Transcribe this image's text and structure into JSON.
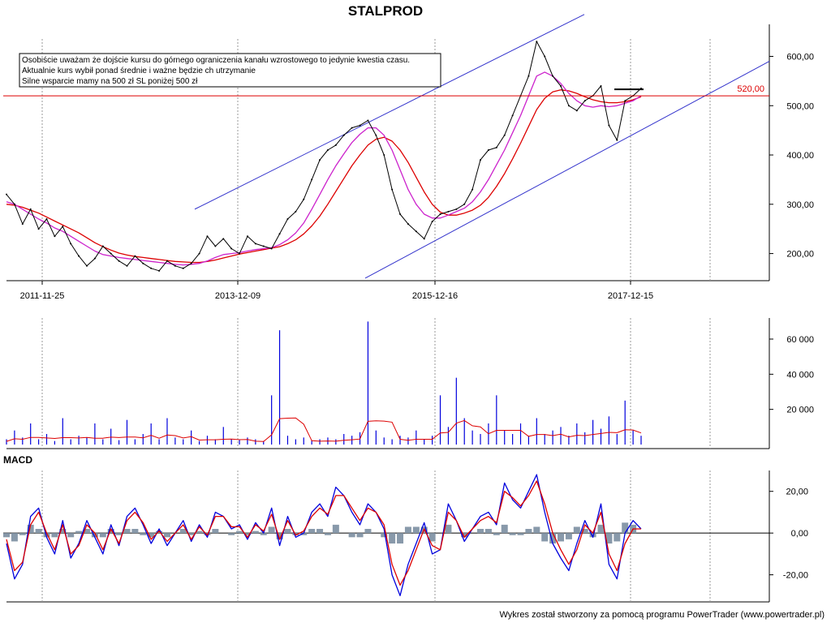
{
  "chart_data": [
    {
      "type": "line",
      "panel": "price",
      "title": "STALPROD",
      "annotation": [
        "Osobiście uważam że dojście kursu do górnego ograniczenia kanału wzrostowego to jedynie kwestia czasu.",
        "Aktualnie kurs wybił ponad średnie i ważne będzie ch utrzymanie",
        "Silne wsparcie mamy na 500 zł SL poniżej 500 zł"
      ],
      "x_tick_labels": [
        "2011-11-25",
        "2013-12-09",
        "2015-12-16",
        "2017-12-15"
      ],
      "y_tick_labels": [
        "200,00",
        "300,00",
        "400,00",
        "500,00",
        "600,00"
      ],
      "y_ticks": [
        200,
        300,
        400,
        500,
        600
      ],
      "ylim": [
        145,
        665
      ],
      "grid": true,
      "level_label": "520,00",
      "level_value": 520,
      "colors": {
        "price": "#000000",
        "ma_short": "#cc22cc",
        "ma_long": "#dd0000",
        "channel": "#3333cc",
        "level": "#dd0000"
      },
      "x": [
        0,
        10,
        20,
        30,
        40,
        50,
        60,
        70,
        80,
        90,
        100,
        110,
        120,
        130,
        140,
        150,
        160,
        170,
        180,
        190,
        200,
        210,
        220,
        230,
        240,
        250,
        260,
        270,
        280,
        290,
        300,
        310,
        320,
        330,
        340,
        350,
        360,
        370,
        380,
        390,
        400,
        410,
        420,
        430,
        440,
        450,
        460,
        470,
        480,
        490,
        500,
        510,
        520,
        530,
        540,
        550,
        560,
        570,
        580,
        590,
        600,
        610,
        620,
        630,
        640,
        650,
        660,
        670,
        680,
        690,
        700,
        710,
        720,
        730,
        740,
        750,
        760,
        770,
        780,
        790
      ],
      "series": [
        {
          "values": [
            320,
            300,
            260,
            290,
            250,
            270,
            235,
            255,
            220,
            195,
            175,
            190,
            215,
            200,
            185,
            175,
            195,
            180,
            170,
            165,
            185,
            175,
            170,
            180,
            200,
            235,
            215,
            230,
            210,
            200,
            235,
            220,
            215,
            210,
            240,
            270,
            285,
            310,
            350,
            390,
            410,
            420,
            440,
            455,
            460,
            470,
            440,
            400,
            330,
            280,
            260,
            245,
            230,
            265,
            280,
            285,
            290,
            300,
            330,
            390,
            410,
            415,
            440,
            480,
            520,
            560,
            630,
            600,
            560,
            540,
            500,
            490,
            510,
            520,
            540,
            460,
            430,
            510,
            520,
            535
          ]
        },
        {
          "values": [
            305,
            300,
            290,
            280,
            270,
            262,
            252,
            245,
            235,
            225,
            215,
            205,
            198,
            195,
            192,
            190,
            188,
            186,
            184,
            182,
            180,
            178,
            177,
            178,
            180,
            185,
            192,
            198,
            200,
            202,
            205,
            208,
            210,
            212,
            218,
            228,
            242,
            262,
            290,
            320,
            350,
            378,
            402,
            425,
            442,
            455,
            455,
            440,
            410,
            370,
            330,
            300,
            280,
            272,
            272,
            278,
            285,
            292,
            305,
            325,
            350,
            380,
            410,
            445,
            480,
            520,
            560,
            568,
            560,
            545,
            525,
            510,
            500,
            497,
            500,
            498,
            500,
            505,
            510,
            520
          ]
        },
        {
          "values": [
            300,
            298,
            294,
            288,
            282,
            274,
            266,
            258,
            250,
            242,
            232,
            222,
            214,
            207,
            201,
            197,
            194,
            192,
            190,
            188,
            186,
            184,
            183,
            182,
            182,
            184,
            187,
            191,
            195,
            199,
            202,
            205,
            208,
            211,
            214,
            220,
            228,
            240,
            256,
            276,
            300,
            326,
            352,
            378,
            400,
            420,
            432,
            436,
            428,
            410,
            385,
            355,
            325,
            300,
            284,
            278,
            278,
            282,
            288,
            298,
            314,
            336,
            362,
            392,
            424,
            458,
            492,
            515,
            528,
            532,
            530,
            525,
            518,
            512,
            508,
            506,
            506,
            508,
            512,
            518
          ]
        }
      ],
      "channel_lines": [
        {
          "x": [
            240,
            720
          ],
          "y": [
            290,
            685
          ]
        },
        {
          "x": [
            450,
            948
          ],
          "y": [
            150,
            590
          ]
        }
      ]
    },
    {
      "type": "bar",
      "panel": "volume",
      "y_tick_labels": [
        "20 000",
        "40 000",
        "60 000"
      ],
      "y_ticks": [
        20000,
        40000,
        60000
      ],
      "ylim": [
        0,
        72000
      ],
      "grid": true,
      "x": [
        0,
        10,
        20,
        30,
        40,
        50,
        60,
        70,
        80,
        90,
        100,
        110,
        120,
        130,
        140,
        150,
        160,
        170,
        180,
        190,
        200,
        210,
        220,
        230,
        240,
        250,
        260,
        270,
        280,
        290,
        300,
        310,
        320,
        330,
        340,
        350,
        360,
        370,
        380,
        390,
        400,
        410,
        420,
        430,
        440,
        450,
        460,
        470,
        480,
        490,
        500,
        510,
        520,
        530,
        540,
        550,
        560,
        570,
        580,
        590,
        600,
        610,
        620,
        630,
        640,
        650,
        660,
        670,
        680,
        690,
        700,
        710,
        720,
        730,
        740,
        750,
        760,
        770,
        780,
        790
      ],
      "values": [
        3000,
        8000,
        4000,
        12000,
        3000,
        6000,
        2000,
        15000,
        3000,
        5000,
        4000,
        12000,
        3000,
        9000,
        2500,
        14000,
        3000,
        6000,
        12000,
        3000,
        15000,
        4000,
        3000,
        8000,
        2000,
        5000,
        3000,
        10000,
        3000,
        2500,
        4000,
        3000,
        2000,
        28000,
        65000,
        5000,
        3000,
        4000,
        2500,
        3000,
        4000,
        3000,
        6000,
        5000,
        7000,
        70000,
        8000,
        4000,
        3000,
        5000,
        4000,
        8000,
        3000,
        5000,
        28000,
        10000,
        38000,
        15000,
        8000,
        6000,
        12000,
        28000,
        8000,
        6000,
        12000,
        5000,
        15000,
        6000,
        8000,
        10000,
        5000,
        12000,
        7000,
        14000,
        9000,
        16000,
        6000,
        25000,
        8000,
        5000
      ],
      "colors": {
        "bars": "#0000dd",
        "average": "#dd0000"
      }
    },
    {
      "type": "area",
      "panel": "macd",
      "title": "MACD",
      "y_tick_labels": [
        "-20,00",
        "0,00",
        "20,00"
      ],
      "y_ticks": [
        -20,
        0,
        20
      ],
      "ylim": [
        -33,
        30
      ],
      "grid": true,
      "x": [
        0,
        10,
        20,
        30,
        40,
        50,
        60,
        70,
        80,
        90,
        100,
        110,
        120,
        130,
        140,
        150,
        160,
        170,
        180,
        190,
        200,
        210,
        220,
        230,
        240,
        250,
        260,
        270,
        280,
        290,
        300,
        310,
        320,
        330,
        340,
        350,
        360,
        370,
        380,
        390,
        400,
        410,
        420,
        430,
        440,
        450,
        460,
        470,
        480,
        490,
        500,
        510,
        520,
        530,
        540,
        550,
        560,
        570,
        580,
        590,
        600,
        610,
        620,
        630,
        640,
        650,
        660,
        670,
        680,
        690,
        700,
        710,
        720,
        730,
        740,
        750,
        760,
        770,
        780,
        790
      ],
      "series": [
        {
          "values": [
            -5,
            -22,
            -15,
            8,
            12,
            -2,
            -10,
            6,
            -12,
            -5,
            6,
            -2,
            -10,
            4,
            -6,
            8,
            12,
            4,
            -5,
            2,
            -6,
            0,
            6,
            -4,
            4,
            -2,
            10,
            8,
            2,
            4,
            -3,
            5,
            0,
            12,
            -6,
            8,
            -2,
            0,
            10,
            14,
            8,
            22,
            18,
            10,
            4,
            14,
            10,
            2,
            -20,
            -30,
            -15,
            -5,
            5,
            -10,
            -8,
            14,
            6,
            -4,
            2,
            8,
            10,
            4,
            24,
            16,
            12,
            20,
            28,
            10,
            -5,
            -12,
            -18,
            -5,
            6,
            -2,
            14,
            -15,
            -22,
            0,
            6,
            2
          ]
        },
        {
          "values": [
            -3,
            -18,
            -14,
            4,
            10,
            0,
            -8,
            4,
            -10,
            -6,
            4,
            0,
            -8,
            2,
            -5,
            6,
            10,
            5,
            -3,
            1,
            -4,
            0,
            4,
            -3,
            3,
            -1,
            8,
            8,
            3,
            3,
            -2,
            4,
            1,
            9,
            -3,
            6,
            -1,
            1,
            8,
            12,
            9,
            18,
            18,
            12,
            6,
            12,
            10,
            4,
            -15,
            -25,
            -18,
            -8,
            2,
            -6,
            -8,
            10,
            6,
            -2,
            2,
            6,
            8,
            5,
            20,
            17,
            13,
            18,
            25,
            14,
            0,
            -8,
            -15,
            -8,
            4,
            0,
            10,
            -10,
            -18,
            -5,
            2,
            2
          ]
        },
        {
          "values": [
            -2,
            -4,
            -1,
            4,
            2,
            -2,
            -2,
            2,
            -2,
            1,
            2,
            -2,
            -2,
            2,
            -1,
            2,
            2,
            -1,
            -2,
            1,
            -2,
            0,
            2,
            -1,
            1,
            -1,
            2,
            0,
            -1,
            1,
            -1,
            1,
            -1,
            3,
            -3,
            2,
            -1,
            -1,
            2,
            2,
            -1,
            4,
            0,
            -2,
            -2,
            2,
            0,
            -2,
            -5,
            -5,
            3,
            3,
            3,
            -4,
            0,
            4,
            0,
            -2,
            0,
            2,
            2,
            -1,
            4,
            -1,
            -1,
            2,
            3,
            -4,
            -5,
            -4,
            -3,
            3,
            2,
            -2,
            4,
            -5,
            -4,
            5,
            4,
            0
          ]
        }
      ],
      "colors": {
        "macd": "#0000dd",
        "signal": "#dd0000",
        "histogram": "#8899aa"
      }
    }
  ],
  "footer": "Wykres został stworzony za pomocą programu PowerTrader (www.powertrader.pl)"
}
